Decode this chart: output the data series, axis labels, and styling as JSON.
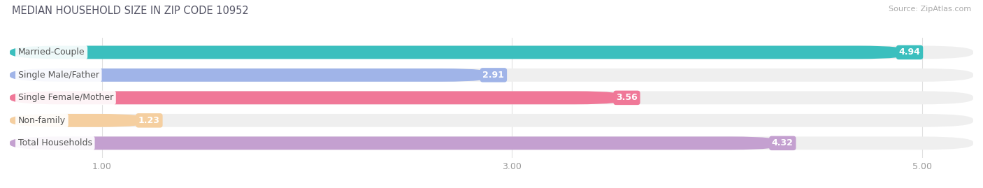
{
  "title": "MEDIAN HOUSEHOLD SIZE IN ZIP CODE 10952",
  "source": "Source: ZipAtlas.com",
  "categories": [
    "Married-Couple",
    "Single Male/Father",
    "Single Female/Mother",
    "Non-family",
    "Total Households"
  ],
  "values": [
    4.94,
    2.91,
    3.56,
    1.23,
    4.32
  ],
  "bar_colors": [
    "#3bbfbe",
    "#a0b4e8",
    "#f07898",
    "#f5cfa0",
    "#c4a0d0"
  ],
  "xlim_left": 0.55,
  "xlim_right": 5.25,
  "xticks": [
    1.0,
    3.0,
    5.0
  ],
  "xtick_labels": [
    "1.00",
    "3.00",
    "5.00"
  ],
  "title_fontsize": 10.5,
  "source_fontsize": 8,
  "bar_height": 0.58,
  "label_fontsize": 9,
  "value_fontsize": 9,
  "background_color": "#ffffff",
  "bar_bg_color": "#efefef",
  "grid_color": "#e0e0e0"
}
